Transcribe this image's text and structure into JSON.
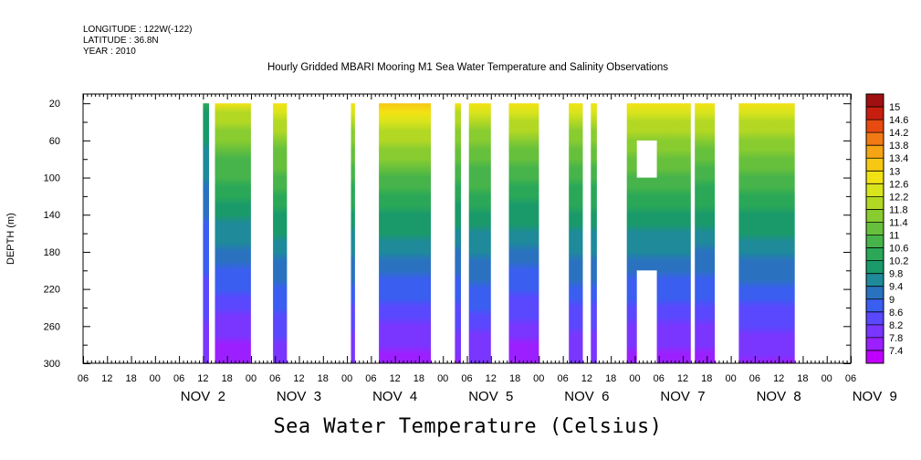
{
  "header": {
    "longitude": "LONGITUDE : 122W(-122)",
    "latitude": "LATITUDE : 36.8N",
    "year": "YEAR : 2010"
  },
  "chart_data": {
    "type": "heatmap",
    "title": "Hourly Gridded MBARI Mooring M1 Sea Water Temperature and Salinity Observations",
    "xlabel": "Sea Water Temperature (Celsius)",
    "ylabel": "DEPTH (m)",
    "x_unit": "hours since Nov 2 00:00",
    "xlim": [
      -18,
      174
    ],
    "x_tick_labels": [
      "06",
      "12",
      "18",
      "00",
      "06",
      "12",
      "18",
      "00",
      "06",
      "12",
      "18",
      "00",
      "06",
      "12",
      "18",
      "00",
      "06",
      "12",
      "18",
      "00",
      "06",
      "12",
      "18",
      "00",
      "06",
      "12",
      "18",
      "00",
      "06",
      "12",
      "18",
      "00",
      "06"
    ],
    "date_labels": [
      "NOV  2",
      "NOV  3",
      "NOV  4",
      "NOV  5",
      "NOV  6",
      "NOV  7",
      "NOV  8",
      "NOV  9"
    ],
    "y_ticks": [
      20,
      60,
      100,
      140,
      180,
      220,
      260,
      300
    ],
    "ylim": [
      300,
      10
    ],
    "colorbar": {
      "levels": [
        7.4,
        7.8,
        8.2,
        8.6,
        9,
        9.4,
        9.8,
        10.2,
        10.6,
        11,
        11.4,
        11.8,
        12.2,
        12.6,
        13,
        13.4,
        13.8,
        14.2,
        14.6,
        15
      ],
      "colors": [
        "#c000ff",
        "#9c20ff",
        "#7a36ff",
        "#5a48ff",
        "#3a5ef0",
        "#2a72c0",
        "#1e8a9a",
        "#1a9a6a",
        "#2aa858",
        "#46b44a",
        "#66c03c",
        "#88cc30",
        "#b2d824",
        "#d8e41c",
        "#f2e214",
        "#f6c814",
        "#f6a414",
        "#f27a14",
        "#e84a10",
        "#c81e10",
        "#a01010"
      ]
    },
    "data_blocks": [
      {
        "start": 12,
        "end": 13.5,
        "surface": 10.4,
        "bottom": 7.9
      },
      {
        "start": 15,
        "end": 24,
        "surface": 12.6,
        "bottom": 7.5
      },
      {
        "start": 29.5,
        "end": 33,
        "surface": 12.7,
        "bottom": 7.9
      },
      {
        "start": 49,
        "end": 50,
        "surface": 12.6,
        "bottom": 7.8
      },
      {
        "start": 56,
        "end": 69,
        "surface": 13.2,
        "bottom": 7.5
      },
      {
        "start": 75,
        "end": 76.5,
        "surface": 12.6,
        "bottom": 7.7
      },
      {
        "start": 78.5,
        "end": 84,
        "surface": 12.7,
        "bottom": 7.8
      },
      {
        "start": 88.5,
        "end": 96,
        "surface": 12.8,
        "bottom": 7.5
      },
      {
        "start": 103.5,
        "end": 107,
        "surface": 12.6,
        "bottom": 7.8
      },
      {
        "start": 109,
        "end": 110.5,
        "surface": 12.6,
        "bottom": 7.8
      },
      {
        "start": 118,
        "end": 134,
        "surface": 12.9,
        "bottom": 7.6
      },
      {
        "start": 135,
        "end": 140,
        "surface": 12.8,
        "bottom": 7.6
      },
      {
        "start": 146,
        "end": 160,
        "surface": 12.9,
        "bottom": 7.7
      }
    ],
    "gaps": [
      {
        "start": 120.5,
        "end": 125.5,
        "top": 60,
        "bottom": 100
      },
      {
        "start": 120.5,
        "end": 125.5,
        "top": 200,
        "bottom": 300
      }
    ]
  }
}
